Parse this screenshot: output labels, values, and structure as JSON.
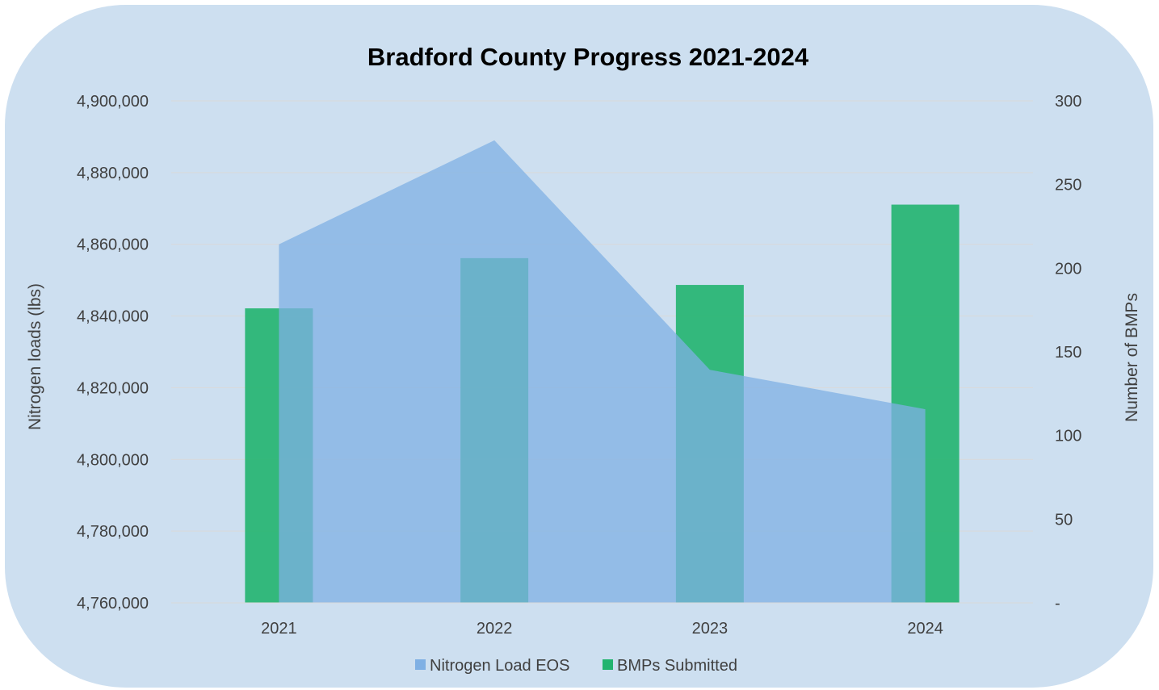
{
  "chart_data": {
    "type": "bar",
    "title": "Bradford County Progress 2021-2024",
    "categories": [
      "2021",
      "2022",
      "2023",
      "2024"
    ],
    "y_left": {
      "label": "Nitrogen loads (lbs)",
      "range": [
        4760000,
        4900000
      ],
      "ticks": [
        4760000,
        4780000,
        4800000,
        4820000,
        4840000,
        4860000,
        4880000,
        4900000
      ],
      "tick_labels": [
        "4,760,000",
        "4,780,000",
        "4,800,000",
        "4,820,000",
        "4,840,000",
        "4,860,000",
        "4,880,000",
        "4,900,000"
      ]
    },
    "y_right": {
      "label": "Number of BMPs",
      "range": [
        0,
        300
      ],
      "ticks": [
        0,
        50,
        100,
        150,
        200,
        250,
        300
      ],
      "tick_labels": [
        "-",
        "50",
        "100",
        "150",
        "200",
        "250",
        "300"
      ]
    },
    "series": [
      {
        "name": "Nitrogen Load EOS",
        "type": "area",
        "axis": "left",
        "color": "#7fb0e4",
        "values": [
          4860000,
          4889000,
          4825000,
          4814000
        ]
      },
      {
        "name": "BMPs Submitted",
        "type": "bar",
        "axis": "right",
        "color": "#22b46f",
        "values": [
          176,
          206,
          190,
          238
        ]
      }
    ],
    "grid": true,
    "legend_position": "bottom"
  }
}
